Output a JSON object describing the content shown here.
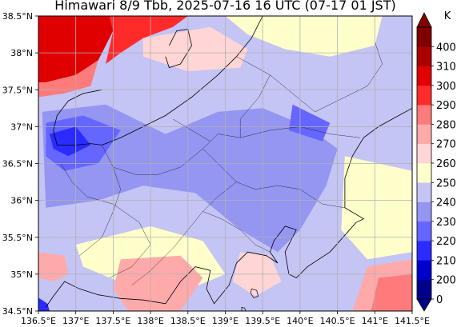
{
  "title": "Himawari 8/9 Tbb, 2025-07-16 16 UTC (07-17 01 JST)",
  "map": {
    "lon_min": 136.5,
    "lon_max": 141.5,
    "lat_min": 34.5,
    "lat_max": 38.5,
    "x_ticks": [
      {
        "value": 136.5,
        "label": "136.5°E"
      },
      {
        "value": 137.0,
        "label": "137°E"
      },
      {
        "value": 137.5,
        "label": "137.5°E"
      },
      {
        "value": 138.0,
        "label": "138°E"
      },
      {
        "value": 138.5,
        "label": "138.5°E"
      },
      {
        "value": 139.0,
        "label": "139°E"
      },
      {
        "value": 139.5,
        "label": "139.5°E"
      },
      {
        "value": 140.0,
        "label": "140°E"
      },
      {
        "value": 140.5,
        "label": "140.5°E"
      },
      {
        "value": 141.0,
        "label": "141°E"
      },
      {
        "value": 141.5,
        "label": "141.5°E"
      }
    ],
    "y_ticks": [
      {
        "value": 38.5,
        "label": "38.5°N"
      },
      {
        "value": 38.0,
        "label": "38°N"
      },
      {
        "value": 37.5,
        "label": "37.5°N"
      },
      {
        "value": 37.0,
        "label": "37°N"
      },
      {
        "value": 36.5,
        "label": "36.5°N"
      },
      {
        "value": 36.0,
        "label": "36°N"
      },
      {
        "value": 35.5,
        "label": "35.5°N"
      },
      {
        "value": 35.0,
        "label": "35°N"
      },
      {
        "value": 34.5,
        "label": "34.5°N"
      }
    ],
    "grid": true,
    "cloud_regions": [
      {
        "tbb": 300,
        "points": [
          [
            136.5,
            38.5
          ],
          [
            137.45,
            38.5
          ],
          [
            137.5,
            38.3
          ],
          [
            137.4,
            38.1
          ],
          [
            137.3,
            37.9
          ],
          [
            137.0,
            37.7
          ],
          [
            136.6,
            37.6
          ],
          [
            136.5,
            37.6
          ]
        ]
      },
      {
        "tbb": 290,
        "points": [
          [
            137.45,
            38.5
          ],
          [
            138.5,
            38.5
          ],
          [
            138.3,
            38.35
          ],
          [
            137.9,
            38.2
          ],
          [
            137.6,
            38.0
          ],
          [
            137.4,
            37.85
          ],
          [
            137.5,
            38.3
          ]
        ]
      },
      {
        "tbb": 280,
        "points": [
          [
            136.5,
            37.6
          ],
          [
            136.6,
            37.6
          ],
          [
            137.0,
            37.7
          ],
          [
            137.3,
            37.9
          ],
          [
            137.2,
            37.55
          ],
          [
            136.85,
            37.45
          ],
          [
            136.5,
            37.4
          ]
        ]
      },
      {
        "tbb": 240,
        "points": [
          [
            136.5,
            37.4
          ],
          [
            136.85,
            37.45
          ],
          [
            137.2,
            37.55
          ],
          [
            137.8,
            37.35
          ],
          [
            138.3,
            37.15
          ],
          [
            138.9,
            37.35
          ],
          [
            139.6,
            37.45
          ],
          [
            140.2,
            37.2
          ],
          [
            140.6,
            36.9
          ],
          [
            140.6,
            36.2
          ],
          [
            140.3,
            35.8
          ],
          [
            140.0,
            35.3
          ],
          [
            139.6,
            35.0
          ],
          [
            139.0,
            35.2
          ],
          [
            138.6,
            35.7
          ],
          [
            138.0,
            35.8
          ],
          [
            137.5,
            35.5
          ],
          [
            136.9,
            35.4
          ],
          [
            136.5,
            35.6
          ]
        ]
      },
      {
        "tbb": 230,
        "points": [
          [
            136.55,
            37.2
          ],
          [
            137.4,
            37.3
          ],
          [
            138.2,
            36.9
          ],
          [
            138.9,
            37.2
          ],
          [
            139.5,
            37.25
          ],
          [
            140.1,
            37.0
          ],
          [
            140.5,
            36.7
          ],
          [
            140.35,
            36.2
          ],
          [
            140.0,
            35.6
          ],
          [
            139.7,
            35.3
          ],
          [
            139.2,
            35.6
          ],
          [
            138.6,
            36.1
          ],
          [
            137.9,
            36.2
          ],
          [
            137.3,
            36.0
          ],
          [
            136.6,
            35.9
          ]
        ]
      },
      {
        "tbb": 220,
        "points": [
          [
            136.6,
            37.05
          ],
          [
            137.1,
            37.15
          ],
          [
            137.6,
            36.95
          ],
          [
            137.3,
            36.5
          ],
          [
            136.85,
            36.4
          ],
          [
            136.6,
            36.6
          ]
        ]
      },
      {
        "tbb": 220,
        "points": [
          [
            139.9,
            37.3
          ],
          [
            140.4,
            37.05
          ],
          [
            140.3,
            36.8
          ],
          [
            139.85,
            36.95
          ]
        ]
      },
      {
        "tbb": 210,
        "points": [
          [
            136.65,
            36.9
          ],
          [
            137.0,
            37.0
          ],
          [
            137.2,
            36.75
          ],
          [
            136.9,
            36.6
          ],
          [
            136.7,
            36.7
          ]
        ]
      },
      {
        "tbb": 260,
        "points": [
          [
            137.9,
            38.2
          ],
          [
            138.8,
            38.35
          ],
          [
            139.3,
            38.05
          ],
          [
            139.2,
            37.8
          ],
          [
            138.5,
            37.75
          ],
          [
            137.9,
            37.95
          ]
        ]
      },
      {
        "tbb": 250,
        "points": [
          [
            139.0,
            38.5
          ],
          [
            141.1,
            38.5
          ],
          [
            141.0,
            38.1
          ],
          [
            140.4,
            37.95
          ],
          [
            139.8,
            38.05
          ],
          [
            139.3,
            38.25
          ]
        ]
      },
      {
        "tbb": 250,
        "points": [
          [
            137.0,
            35.4
          ],
          [
            138.0,
            35.65
          ],
          [
            138.7,
            35.45
          ],
          [
            139.0,
            35.0
          ],
          [
            138.4,
            34.75
          ],
          [
            137.7,
            34.85
          ],
          [
            137.1,
            35.1
          ]
        ]
      },
      {
        "tbb": 250,
        "points": [
          [
            140.6,
            36.6
          ],
          [
            141.5,
            36.4
          ],
          [
            141.5,
            35.3
          ],
          [
            140.9,
            35.2
          ],
          [
            140.55,
            35.6
          ]
        ]
      },
      {
        "tbb": 260,
        "points": [
          [
            139.2,
            35.3
          ],
          [
            139.6,
            35.25
          ],
          [
            139.75,
            34.9
          ],
          [
            139.4,
            34.7
          ],
          [
            139.1,
            34.9
          ]
        ]
      },
      {
        "tbb": 270,
        "points": [
          [
            137.6,
            35.2
          ],
          [
            138.4,
            35.25
          ],
          [
            138.7,
            34.95
          ],
          [
            138.4,
            34.5
          ],
          [
            137.7,
            34.5
          ],
          [
            137.5,
            34.8
          ]
        ]
      },
      {
        "tbb": 270,
        "points": [
          [
            140.9,
            35.1
          ],
          [
            141.5,
            35.2
          ],
          [
            141.5,
            34.5
          ],
          [
            140.7,
            34.5
          ]
        ]
      },
      {
        "tbb": 280,
        "points": [
          [
            141.05,
            34.95
          ],
          [
            141.5,
            35.0
          ],
          [
            141.5,
            34.5
          ],
          [
            140.95,
            34.5
          ]
        ]
      },
      {
        "tbb": 270,
        "points": [
          [
            136.5,
            35.3
          ],
          [
            136.85,
            35.25
          ],
          [
            136.9,
            35.0
          ],
          [
            136.7,
            34.9
          ],
          [
            136.5,
            34.95
          ]
        ]
      },
      {
        "tbb": 210,
        "points": [
          [
            136.5,
            34.68
          ],
          [
            136.62,
            34.6
          ],
          [
            136.65,
            34.5
          ],
          [
            136.5,
            34.5
          ]
        ]
      }
    ],
    "coastlines": [
      [
        [
          137.35,
          37.5
        ],
        [
          137.1,
          37.45
        ],
        [
          136.9,
          37.35
        ],
        [
          136.75,
          37.15
        ],
        [
          136.7,
          36.95
        ],
        [
          136.75,
          36.75
        ],
        [
          137.0,
          36.75
        ],
        [
          137.2,
          36.77
        ],
        [
          137.35,
          36.75
        ]
      ],
      [
        [
          137.35,
          36.75
        ],
        [
          137.6,
          36.85
        ],
        [
          137.9,
          37.0
        ],
        [
          138.2,
          37.15
        ],
        [
          138.55,
          37.4
        ],
        [
          138.9,
          37.7
        ],
        [
          139.15,
          37.95
        ],
        [
          139.35,
          38.2
        ],
        [
          139.5,
          38.5
        ]
      ],
      [
        [
          138.25,
          38.1
        ],
        [
          138.35,
          38.3
        ],
        [
          138.5,
          38.32
        ],
        [
          138.55,
          38.1
        ],
        [
          138.4,
          37.85
        ],
        [
          138.25,
          37.8
        ],
        [
          138.2,
          37.95
        ]
      ],
      [
        [
          141.5,
          37.25
        ],
        [
          141.05,
          37.0
        ],
        [
          140.85,
          36.85
        ],
        [
          140.7,
          36.6
        ],
        [
          140.6,
          36.3
        ],
        [
          140.6,
          35.9
        ],
        [
          140.85,
          35.75
        ],
        [
          140.75,
          35.7
        ],
        [
          140.4,
          35.3
        ],
        [
          140.1,
          35.1
        ],
        [
          139.95,
          34.95
        ],
        [
          139.85,
          35.0
        ],
        [
          139.8,
          35.3
        ],
        [
          139.95,
          35.6
        ],
        [
          139.8,
          35.65
        ],
        [
          139.65,
          35.45
        ],
        [
          139.6,
          35.3
        ],
        [
          139.7,
          35.15
        ],
        [
          139.55,
          35.25
        ],
        [
          139.3,
          35.3
        ],
        [
          139.15,
          35.15
        ],
        [
          139.05,
          34.85
        ],
        [
          138.85,
          34.6
        ],
        [
          138.75,
          34.8
        ],
        [
          138.8,
          35.05
        ],
        [
          138.6,
          35.1
        ],
        [
          138.4,
          34.9
        ],
        [
          138.2,
          34.6
        ],
        [
          137.9,
          34.65
        ],
        [
          137.6,
          34.67
        ],
        [
          137.3,
          34.72
        ],
        [
          137.05,
          34.8
        ],
        [
          136.85,
          34.9
        ],
        [
          136.7,
          34.7
        ],
        [
          136.6,
          34.55
        ]
      ]
    ],
    "borders": [
      [
        [
          137.35,
          36.75
        ],
        [
          137.5,
          36.45
        ],
        [
          137.6,
          36.15
        ],
        [
          137.5,
          35.85
        ],
        [
          137.35,
          35.5
        ],
        [
          137.05,
          35.25
        ]
      ],
      [
        [
          136.8,
          36.5
        ],
        [
          136.95,
          36.25
        ],
        [
          137.15,
          36.05
        ],
        [
          137.5,
          35.95
        ]
      ],
      [
        [
          137.5,
          36.45
        ],
        [
          137.8,
          36.35
        ],
        [
          138.1,
          36.35
        ],
        [
          138.4,
          36.45
        ],
        [
          138.7,
          36.7
        ],
        [
          138.9,
          36.9
        ],
        [
          139.2,
          36.85
        ]
      ],
      [
        [
          138.7,
          36.7
        ],
        [
          138.9,
          36.5
        ],
        [
          139.15,
          36.25
        ],
        [
          139.4,
          36.15
        ],
        [
          139.7,
          36.2
        ],
        [
          140.0,
          36.15
        ],
        [
          140.3,
          35.95
        ],
        [
          140.6,
          35.9
        ]
      ],
      [
        [
          139.15,
          36.25
        ],
        [
          138.9,
          36.05
        ],
        [
          138.7,
          35.85
        ],
        [
          138.5,
          35.6
        ],
        [
          138.3,
          35.35
        ],
        [
          138.0,
          35.05
        ],
        [
          137.75,
          34.85
        ]
      ],
      [
        [
          138.7,
          35.85
        ],
        [
          138.95,
          35.75
        ],
        [
          139.2,
          35.6
        ],
        [
          139.4,
          35.4
        ],
        [
          139.6,
          35.3
        ]
      ],
      [
        [
          139.2,
          36.85
        ],
        [
          139.6,
          36.95
        ],
        [
          140.0,
          37.0
        ],
        [
          140.4,
          36.9
        ],
        [
          140.8,
          36.85
        ]
      ],
      [
        [
          139.15,
          37.95
        ],
        [
          139.6,
          37.7
        ],
        [
          139.9,
          37.45
        ],
        [
          140.2,
          37.2
        ],
        [
          140.5,
          37.35
        ],
        [
          140.9,
          37.55
        ],
        [
          141.1,
          37.85
        ],
        [
          141.0,
          38.15
        ]
      ],
      [
        [
          139.6,
          37.7
        ],
        [
          139.45,
          37.4
        ],
        [
          139.2,
          37.1
        ],
        [
          139.2,
          36.85
        ]
      ],
      [
        [
          137.5,
          35.95
        ],
        [
          137.85,
          35.7
        ],
        [
          138.0,
          35.4
        ],
        [
          137.75,
          35.1
        ],
        [
          137.45,
          34.95
        ]
      ],
      [
        [
          138.3,
          37.1
        ],
        [
          138.55,
          36.95
        ],
        [
          138.8,
          36.8
        ]
      ]
    ],
    "islands": [
      [
        [
          139.35,
          34.8
        ],
        [
          139.42,
          34.78
        ],
        [
          139.44,
          34.7
        ],
        [
          139.38,
          34.68
        ],
        [
          139.34,
          34.74
        ]
      ],
      [
        [
          139.22,
          34.55
        ],
        [
          139.26,
          34.54
        ],
        [
          139.27,
          34.5
        ],
        [
          139.22,
          34.5
        ]
      ]
    ]
  },
  "colorbar": {
    "unit": "K",
    "levels": [
      0,
      200,
      210,
      220,
      230,
      240,
      250,
      260,
      270,
      280,
      290,
      300,
      310,
      400
    ],
    "labels": [
      "0",
      "200",
      "210",
      "220",
      "230",
      "240",
      "250",
      "260",
      "270",
      "280",
      "290",
      "300",
      "310",
      "400"
    ],
    "colors": [
      "#00008b",
      "#0000cd",
      "#2b2bff",
      "#6565ff",
      "#9595f2",
      "#c4c4f5",
      "#ffffcc",
      "#ffd5d5",
      "#ffaaaa",
      "#ff7b7b",
      "#ff2b2b",
      "#e10000",
      "#aa0000",
      "#800000"
    ],
    "under_color": "#00008b",
    "over_color": "#800000"
  }
}
